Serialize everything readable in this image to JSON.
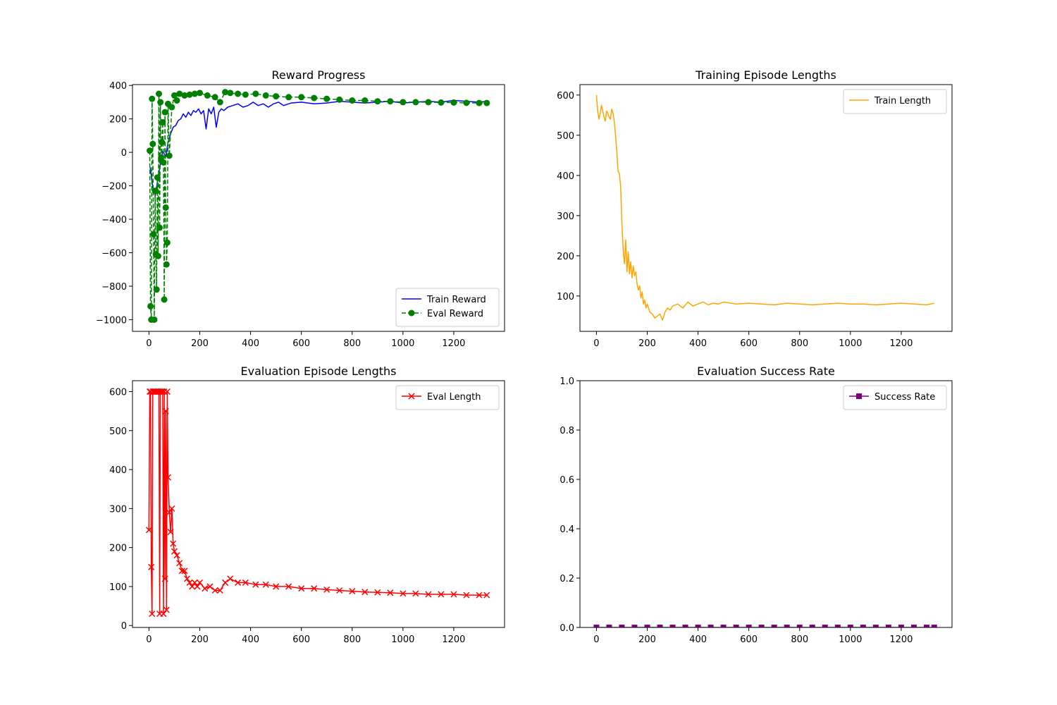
{
  "colors": {
    "train_reward": "#0000ff",
    "eval_reward": "#008000",
    "train_length": "#ffa500",
    "eval_length": "#ff0000",
    "success_rate": "#800080"
  },
  "chart_data": [
    {
      "type": "line",
      "title": "Reward Progress",
      "xlabel": "",
      "ylabel": "",
      "xlim": [
        -65,
        1400
      ],
      "ylim": [
        -1070,
        405
      ],
      "xticks": [
        "0",
        "200",
        "400",
        "600",
        "800",
        "1000",
        "1200"
      ],
      "xtick_values": [
        0,
        200,
        400,
        600,
        800,
        1000,
        1200
      ],
      "yticks": [
        "−1000",
        "−800",
        "−600",
        "−400",
        "−200",
        "0",
        "200",
        "400"
      ],
      "ytick_values": [
        -1000,
        -800,
        -600,
        -400,
        -200,
        0,
        200,
        400
      ],
      "legend_position": "lower-right",
      "grid": false,
      "series": [
        {
          "name": "Train Reward",
          "color": "#0000ff",
          "style": "solid",
          "marker": "none",
          "x": [
            5,
            15,
            25,
            35,
            45,
            55,
            65,
            75,
            85,
            95,
            105,
            115,
            125,
            135,
            145,
            155,
            165,
            175,
            185,
            195,
            205,
            215,
            225,
            235,
            245,
            255,
            265,
            275,
            285,
            295,
            310,
            330,
            350,
            370,
            390,
            410,
            430,
            450,
            470,
            490,
            510,
            530,
            560,
            600,
            650,
            700,
            750,
            800,
            850,
            900,
            950,
            1000,
            1050,
            1100,
            1150,
            1200,
            1250,
            1300,
            1330
          ],
          "y": [
            -90,
            -210,
            -260,
            -160,
            -70,
            10,
            -30,
            60,
            110,
            150,
            160,
            190,
            200,
            230,
            210,
            240,
            220,
            250,
            240,
            260,
            230,
            250,
            140,
            260,
            230,
            270,
            150,
            240,
            260,
            250,
            270,
            280,
            290,
            270,
            280,
            300,
            280,
            290,
            270,
            290,
            300,
            280,
            295,
            300,
            290,
            295,
            305,
            300,
            295,
            300,
            305,
            295,
            300,
            305,
            300,
            310,
            305,
            300,
            305
          ]
        },
        {
          "name": "Eval Reward",
          "color": "#008000",
          "style": "dashed",
          "marker": "circle",
          "x": [
            3,
            6,
            9,
            12,
            15,
            18,
            21,
            24,
            27,
            30,
            33,
            36,
            39,
            42,
            45,
            48,
            51,
            54,
            57,
            60,
            63,
            66,
            69,
            72,
            75,
            80,
            90,
            100,
            110,
            120,
            140,
            160,
            180,
            200,
            230,
            260,
            280,
            300,
            320,
            350,
            380,
            420,
            460,
            500,
            550,
            600,
            650,
            700,
            750,
            800,
            850,
            900,
            950,
            1000,
            1050,
            1100,
            1150,
            1200,
            1250,
            1300,
            1330
          ],
          "y": [
            10,
            -920,
            -1000,
            320,
            50,
            -490,
            -1000,
            -230,
            -610,
            -820,
            -150,
            -620,
            350,
            -450,
            300,
            -30,
            60,
            180,
            -60,
            -880,
            240,
            -330,
            -670,
            -540,
            290,
            -20,
            270,
            340,
            310,
            350,
            340,
            345,
            350,
            355,
            340,
            330,
            300,
            360,
            355,
            350,
            345,
            350,
            340,
            335,
            330,
            330,
            325,
            320,
            315,
            310,
            310,
            305,
            305,
            300,
            300,
            300,
            298,
            298,
            296,
            295,
            295
          ]
        }
      ]
    },
    {
      "type": "line",
      "title": "Training Episode Lengths",
      "xlabel": "",
      "ylabel": "",
      "xlim": [
        -65,
        1400
      ],
      "ylim": [
        12,
        626
      ],
      "xticks": [
        "0",
        "200",
        "400",
        "600",
        "800",
        "1000",
        "1200"
      ],
      "xtick_values": [
        0,
        200,
        400,
        600,
        800,
        1000,
        1200
      ],
      "yticks": [
        "100",
        "200",
        "300",
        "400",
        "500",
        "600"
      ],
      "ytick_values": [
        100,
        200,
        300,
        400,
        500,
        600
      ],
      "legend_position": "upper-right",
      "grid": false,
      "series": [
        {
          "name": "Train Length",
          "color": "#ffa500",
          "style": "solid",
          "marker": "none",
          "x": [
            0,
            5,
            10,
            15,
            20,
            25,
            30,
            35,
            40,
            45,
            50,
            55,
            60,
            65,
            70,
            75,
            80,
            85,
            90,
            95,
            100,
            105,
            110,
            115,
            120,
            125,
            130,
            135,
            140,
            145,
            150,
            155,
            160,
            165,
            170,
            175,
            180,
            185,
            190,
            195,
            200,
            210,
            220,
            230,
            240,
            250,
            260,
            270,
            280,
            290,
            300,
            320,
            340,
            360,
            380,
            400,
            420,
            440,
            460,
            480,
            500,
            550,
            600,
            650,
            700,
            750,
            800,
            850,
            900,
            950,
            1000,
            1050,
            1100,
            1150,
            1200,
            1250,
            1300,
            1330
          ],
          "y": [
            600,
            560,
            540,
            555,
            575,
            560,
            545,
            535,
            560,
            555,
            545,
            540,
            565,
            555,
            535,
            500,
            460,
            410,
            405,
            375,
            285,
            215,
            180,
            240,
            160,
            210,
            155,
            185,
            145,
            175,
            150,
            160,
            130,
            115,
            125,
            95,
            110,
            80,
            90,
            70,
            80,
            60,
            55,
            45,
            50,
            55,
            40,
            60,
            70,
            65,
            75,
            80,
            70,
            85,
            75,
            80,
            85,
            78,
            82,
            80,
            85,
            80,
            82,
            80,
            78,
            82,
            80,
            78,
            80,
            82,
            80,
            80,
            78,
            80,
            82,
            80,
            78,
            82
          ]
        }
      ]
    },
    {
      "type": "line",
      "title": "Evaluation Episode Lengths",
      "xlabel": "",
      "ylabel": "",
      "xlim": [
        -65,
        1400
      ],
      "ylim": [
        -5,
        628
      ],
      "xticks": [
        "0",
        "200",
        "400",
        "600",
        "800",
        "1000",
        "1200"
      ],
      "xtick_values": [
        0,
        200,
        400,
        600,
        800,
        1000,
        1200
      ],
      "yticks": [
        "0",
        "100",
        "200",
        "300",
        "400",
        "500",
        "600"
      ],
      "ytick_values": [
        0,
        100,
        200,
        300,
        400,
        500,
        600
      ],
      "legend_position": "upper-right",
      "grid": false,
      "series": [
        {
          "name": "Eval Length",
          "color": "#ff0000",
          "style": "solid",
          "marker": "x",
          "x": [
            0,
            3,
            6,
            9,
            12,
            15,
            18,
            21,
            24,
            27,
            30,
            33,
            36,
            39,
            42,
            45,
            48,
            51,
            54,
            57,
            60,
            63,
            66,
            69,
            72,
            75,
            80,
            85,
            90,
            95,
            100,
            110,
            120,
            130,
            140,
            150,
            160,
            170,
            180,
            190,
            200,
            220,
            240,
            260,
            280,
            300,
            320,
            350,
            380,
            420,
            460,
            500,
            550,
            600,
            650,
            700,
            750,
            800,
            850,
            900,
            950,
            1000,
            1050,
            1100,
            1150,
            1200,
            1250,
            1300,
            1330
          ],
          "y": [
            245,
            600,
            600,
            150,
            30,
            600,
            600,
            600,
            600,
            600,
            600,
            600,
            600,
            600,
            30,
            600,
            600,
            600,
            600,
            30,
            600,
            120,
            550,
            40,
            600,
            380,
            290,
            240,
            300,
            210,
            190,
            180,
            160,
            140,
            140,
            120,
            110,
            100,
            110,
            100,
            110,
            95,
            100,
            90,
            90,
            110,
            120,
            110,
            110,
            105,
            105,
            100,
            100,
            95,
            95,
            92,
            90,
            88,
            86,
            85,
            84,
            82,
            82,
            80,
            80,
            80,
            78,
            78,
            78
          ]
        }
      ]
    },
    {
      "type": "line",
      "title": "Evaluation Success Rate",
      "xlabel": "",
      "ylabel": "",
      "xlim": [
        -65,
        1400
      ],
      "ylim": [
        0,
        1
      ],
      "xticks": [
        "0",
        "200",
        "400",
        "600",
        "800",
        "1000",
        "1200"
      ],
      "xtick_values": [
        0,
        200,
        400,
        600,
        800,
        1000,
        1200
      ],
      "yticks": [
        "0.0",
        "0.2",
        "0.4",
        "0.6",
        "0.8",
        "1.0"
      ],
      "ytick_values": [
        0,
        0.2,
        0.4,
        0.6,
        0.8,
        1.0
      ],
      "legend_position": "upper-right",
      "grid": false,
      "series": [
        {
          "name": "Success Rate",
          "color": "#800080",
          "style": "solid",
          "marker": "square",
          "x": [
            0,
            50,
            100,
            150,
            200,
            250,
            300,
            350,
            400,
            450,
            500,
            550,
            600,
            650,
            700,
            750,
            800,
            850,
            900,
            950,
            1000,
            1050,
            1100,
            1150,
            1200,
            1250,
            1300,
            1330
          ],
          "y": [
            0,
            0,
            0,
            0,
            0,
            0,
            0,
            0,
            0,
            0,
            0,
            0,
            0,
            0,
            0,
            0,
            0,
            0,
            0,
            0,
            0,
            0,
            0,
            0,
            0,
            0,
            0,
            0
          ]
        }
      ]
    }
  ]
}
